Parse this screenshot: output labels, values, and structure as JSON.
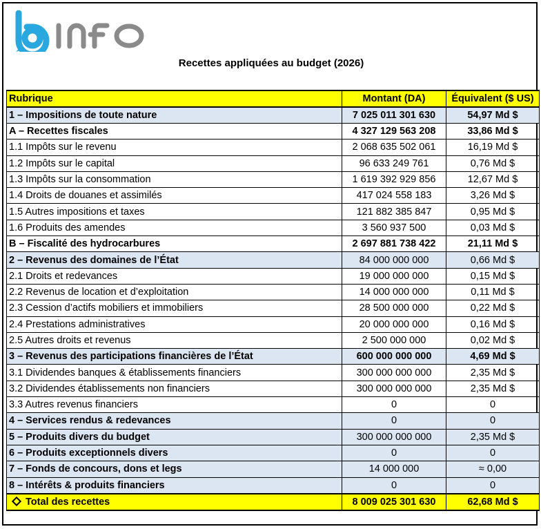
{
  "logo": {
    "text": "binfo",
    "colors": {
      "bubble": "#29a7df",
      "text": "#888888"
    }
  },
  "caption": "Recettes appliquées au budget (2026)",
  "table": {
    "headers": [
      "Rubrique",
      "Montant (DA)",
      "Équivalent ($ US)"
    ],
    "rows": [
      {
        "label": "1 – Impositions de toute nature",
        "amount": "7 025 011 301 630",
        "usd": "54,97 Md $",
        "bold": true,
        "blue": true
      },
      {
        "label": "A – Recettes fiscales",
        "amount": "4 327 129 563 208",
        "usd": "33,86 Md $",
        "bold": true,
        "blue": false
      },
      {
        "label": "1.1 Impôts sur le revenu",
        "amount": "2 068 635 502 061",
        "usd": "16,19 Md $",
        "bold": false,
        "blue": false
      },
      {
        "label": "1.2 Impôts sur le capital",
        "amount": "96 633 249 761",
        "usd": "0,76 Md $",
        "bold": false,
        "blue": false
      },
      {
        "label": "1.3 Impôts sur la consommation",
        "amount": "1 619 392 929 856",
        "usd": "12,67 Md $",
        "bold": false,
        "blue": false
      },
      {
        "label": "1.4 Droits de douanes et assimilés",
        "amount": "417 024 558 183",
        "usd": "3,26 Md $",
        "bold": false,
        "blue": false
      },
      {
        "label": "1.5 Autres impositions et taxes",
        "amount": "121 882 385 847",
        "usd": "0,95 Md $",
        "bold": false,
        "blue": false
      },
      {
        "label": "1.6 Produits des amendes",
        "amount": "3 560 937 500",
        "usd": "0,03 Md $",
        "bold": false,
        "blue": false
      },
      {
        "label": "B – Fiscalité des hydrocarbures",
        "amount": "2 697 881 738 422",
        "usd": "21,11 Md $",
        "bold": true,
        "blue": false
      },
      {
        "label": "2 – Revenus des domaines de l’État",
        "amount": "84 000 000 000",
        "usd": "0,66 Md $",
        "bold": true,
        "blue": true,
        "plain_values": true
      },
      {
        "label": "2.1 Droits et redevances",
        "amount": "19 000 000 000",
        "usd": "0,15 Md $",
        "bold": false,
        "blue": false
      },
      {
        "label": "2.2 Revenus de location et d’exploitation",
        "amount": "14 000 000 000",
        "usd": "0,11 Md $",
        "bold": false,
        "blue": false
      },
      {
        "label": "2.3 Cession d’actifs mobiliers et immobiliers",
        "amount": "28 500 000 000",
        "usd": "0,22 Md $",
        "bold": false,
        "blue": false
      },
      {
        "label": "2.4 Prestations administratives",
        "amount": "20 000 000 000",
        "usd": "0,16 Md $",
        "bold": false,
        "blue": false
      },
      {
        "label": "2.5 Autres droits et revenus",
        "amount": "2 500 000 000",
        "usd": "0,02 Md $",
        "bold": false,
        "blue": false
      },
      {
        "label": "3 – Revenus des participations financières de l’État",
        "amount": "600 000 000 000",
        "usd": "4,69 Md $",
        "bold": true,
        "blue": true
      },
      {
        "label": "3.1 Dividendes banques & établissements financiers",
        "amount": "300 000 000 000",
        "usd": "2,35 Md $",
        "bold": false,
        "blue": false
      },
      {
        "label": "3.2 Dividendes établissements non financiers",
        "amount": "300 000 000 000",
        "usd": "2,35 Md $",
        "bold": false,
        "blue": false
      },
      {
        "label": "3.3 Autres revenus financiers",
        "amount": "0",
        "usd": "0",
        "bold": false,
        "blue": false
      },
      {
        "label": "4 – Services rendus & redevances",
        "amount": "0",
        "usd": "0",
        "bold": true,
        "blue": true,
        "plain_values": true
      },
      {
        "label": "5 – Produits divers du budget",
        "amount": "300 000 000 000",
        "usd": "2,35 Md $",
        "bold": true,
        "blue": true,
        "plain_values": true
      },
      {
        "label": "6 – Produits exceptionnels divers",
        "amount": "0",
        "usd": "0",
        "bold": true,
        "blue": true,
        "plain_values": true
      },
      {
        "label": "7 – Fonds de concours, dons et legs",
        "amount": "14 000 000",
        "usd": "≈ 0,00",
        "bold": true,
        "blue": true,
        "plain_values": true
      },
      {
        "label": "8 – Intérêts & produits financiers",
        "amount": "0",
        "usd": "0",
        "bold": true,
        "blue": true,
        "plain_values": true
      }
    ],
    "total": {
      "label": "Total des recettes",
      "amount": "8 009 025 301 630",
      "usd": "62,68 Md $"
    }
  }
}
